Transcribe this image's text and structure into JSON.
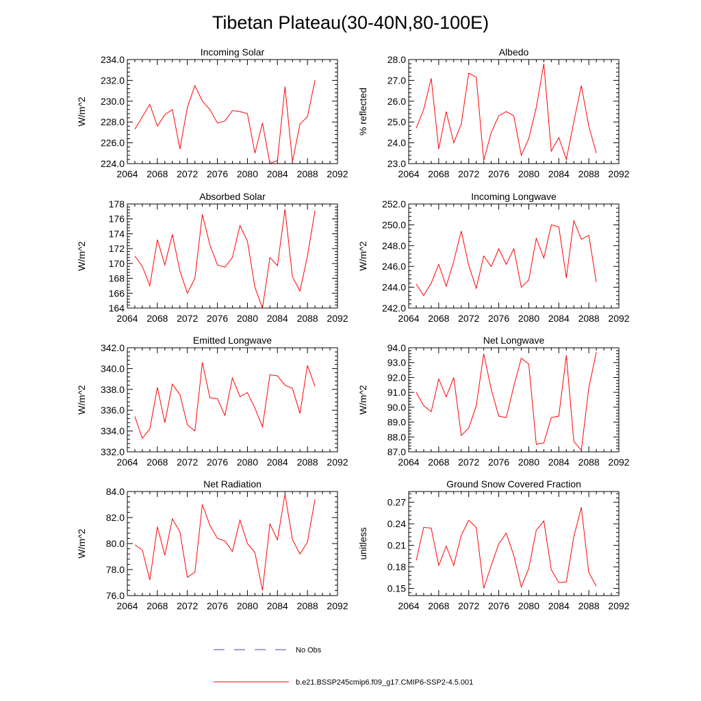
{
  "title": "Tibetan Plateau(30-40N,80-100E)",
  "colors": {
    "model": "#ff0000",
    "obs": "#4444bb",
    "axis": "#000000"
  },
  "legend": {
    "placement": "bottom-center",
    "obs_label": "No Obs",
    "model_label": "b.e21.BSSP245cmip6.f09_g17.CMIP6-SSP2-4.5.001"
  },
  "chart_data": [
    {
      "type": "line",
      "title": "Incoming Solar",
      "ylabel": "W/m^2",
      "xlim": [
        2064,
        2092
      ],
      "ylim": [
        224,
        234
      ],
      "xticks": [
        2064,
        2068,
        2072,
        2076,
        2080,
        2084,
        2088,
        2092
      ],
      "yticks": [
        224,
        226,
        228,
        230,
        232,
        234
      ],
      "ytick_labels": [
        "224.0",
        "226.0",
        "228.0",
        "230.0",
        "232.0",
        "234.0"
      ],
      "series": [
        {
          "name": "b.e21.BSSP245cmip6.f09_g17.CMIP6-SSP2-4.5.001",
          "x": [
            2065,
            2066,
            2067,
            2068,
            2069,
            2070,
            2071,
            2072,
            2073,
            2074,
            2075,
            2076,
            2077,
            2078,
            2079,
            2080,
            2081,
            2082,
            2083,
            2084,
            2085,
            2086,
            2087,
            2088,
            2089
          ],
          "values": [
            227.3,
            228.5,
            229.7,
            227.6,
            228.7,
            229.2,
            225.4,
            229.4,
            231.5,
            230.0,
            229.2,
            227.9,
            228.1,
            229.1,
            229.0,
            228.8,
            225.0,
            227.9,
            224.0,
            224.3,
            231.4,
            224.2,
            227.8,
            228.5,
            232.0
          ]
        }
      ]
    },
    {
      "type": "line",
      "title": "Albedo",
      "ylabel": "% reflected",
      "xlim": [
        2064,
        2092
      ],
      "ylim": [
        23,
        28
      ],
      "xticks": [
        2064,
        2068,
        2072,
        2076,
        2080,
        2084,
        2088,
        2092
      ],
      "yticks": [
        23,
        24,
        25,
        26,
        27,
        28
      ],
      "ytick_labels": [
        "23.0",
        "24.0",
        "25.0",
        "26.0",
        "27.0",
        "28.0"
      ],
      "series": [
        {
          "name": "b.e21.BSSP245cmip6.f09_g17.CMIP6-SSP2-4.5.001",
          "x": [
            2065,
            2066,
            2067,
            2068,
            2069,
            2070,
            2071,
            2072,
            2073,
            2074,
            2075,
            2076,
            2077,
            2078,
            2079,
            2080,
            2081,
            2082,
            2083,
            2084,
            2085,
            2086,
            2087,
            2088,
            2089
          ],
          "values": [
            24.7,
            25.6,
            27.1,
            23.7,
            25.5,
            24.0,
            24.9,
            27.35,
            27.15,
            23.15,
            24.5,
            25.3,
            25.5,
            25.3,
            23.4,
            24.2,
            25.7,
            27.8,
            23.6,
            24.25,
            23.2,
            25.0,
            26.75,
            24.8,
            23.5
          ]
        }
      ]
    },
    {
      "type": "line",
      "title": "Absorbed Solar",
      "ylabel": "W/m^2",
      "xlim": [
        2064,
        2092
      ],
      "ylim": [
        164,
        178
      ],
      "xticks": [
        2064,
        2068,
        2072,
        2076,
        2080,
        2084,
        2088,
        2092
      ],
      "yticks": [
        164,
        166,
        168,
        170,
        172,
        174,
        176,
        178
      ],
      "ytick_labels": [
        "164",
        "166",
        "168",
        "170",
        "172",
        "174",
        "176",
        "178"
      ],
      "series": [
        {
          "name": "b.e21.BSSP245cmip6.f09_g17.CMIP6-SSP2-4.5.001",
          "x": [
            2065,
            2066,
            2067,
            2068,
            2069,
            2070,
            2071,
            2072,
            2073,
            2074,
            2075,
            2076,
            2077,
            2078,
            2079,
            2080,
            2081,
            2082,
            2083,
            2084,
            2085,
            2086,
            2087,
            2088,
            2089
          ],
          "values": [
            171.0,
            169.6,
            167.0,
            173.2,
            169.8,
            173.9,
            169.0,
            166.0,
            168.0,
            176.6,
            172.5,
            169.8,
            169.5,
            170.8,
            175.1,
            173.0,
            166.8,
            164.0,
            170.8,
            169.7,
            177.3,
            168.2,
            166.3,
            171.0,
            177.1
          ]
        }
      ]
    },
    {
      "type": "line",
      "title": "Incoming Longwave",
      "ylabel": "W/m^2",
      "xlim": [
        2064,
        2092
      ],
      "ylim": [
        242,
        252
      ],
      "xticks": [
        2064,
        2068,
        2072,
        2076,
        2080,
        2084,
        2088,
        2092
      ],
      "yticks": [
        242,
        244,
        246,
        248,
        250,
        252
      ],
      "ytick_labels": [
        "242.0",
        "244.0",
        "246.0",
        "248.0",
        "250.0",
        "252.0"
      ],
      "series": [
        {
          "name": "b.e21.BSSP245cmip6.f09_g17.CMIP6-SSP2-4.5.001",
          "x": [
            2065,
            2066,
            2067,
            2068,
            2069,
            2070,
            2071,
            2072,
            2073,
            2074,
            2075,
            2076,
            2077,
            2078,
            2079,
            2080,
            2081,
            2082,
            2083,
            2084,
            2085,
            2086,
            2087,
            2088,
            2089
          ],
          "values": [
            244.3,
            243.2,
            244.4,
            246.2,
            244.1,
            246.5,
            249.4,
            246.1,
            243.9,
            247.0,
            246.0,
            247.7,
            246.2,
            247.7,
            244.0,
            244.7,
            248.7,
            246.8,
            250.0,
            249.8,
            244.9,
            250.4,
            248.6,
            249.0,
            244.5
          ]
        }
      ]
    },
    {
      "type": "line",
      "title": "Emitted Longwave",
      "ylabel": "W/m^2",
      "xlim": [
        2064,
        2092
      ],
      "ylim": [
        332,
        342
      ],
      "xticks": [
        2064,
        2068,
        2072,
        2076,
        2080,
        2084,
        2088,
        2092
      ],
      "yticks": [
        332,
        334,
        336,
        338,
        340,
        342
      ],
      "ytick_labels": [
        "332.0",
        "334.0",
        "336.0",
        "338.0",
        "340.0",
        "342.0"
      ],
      "series": [
        {
          "name": "b.e21.BSSP245cmip6.f09_g17.CMIP6-SSP2-4.5.001",
          "x": [
            2065,
            2066,
            2067,
            2068,
            2069,
            2070,
            2071,
            2072,
            2073,
            2074,
            2075,
            2076,
            2077,
            2078,
            2079,
            2080,
            2081,
            2082,
            2083,
            2084,
            2085,
            2086,
            2087,
            2088,
            2089
          ],
          "values": [
            335.4,
            333.3,
            334.2,
            338.2,
            334.8,
            338.5,
            337.5,
            334.6,
            334.0,
            340.6,
            337.2,
            337.1,
            335.5,
            339.1,
            337.3,
            337.7,
            336.2,
            334.4,
            339.4,
            339.3,
            338.4,
            338.1,
            335.7,
            340.3,
            338.3
          ]
        }
      ]
    },
    {
      "type": "line",
      "title": "Net Longwave",
      "ylabel": "W/m^2",
      "xlim": [
        2064,
        2092
      ],
      "ylim": [
        87,
        94
      ],
      "xticks": [
        2064,
        2068,
        2072,
        2076,
        2080,
        2084,
        2088,
        2092
      ],
      "yticks": [
        87,
        88,
        89,
        90,
        91,
        92,
        93,
        94
      ],
      "ytick_labels": [
        "87.0",
        "88.0",
        "89.0",
        "90.0",
        "91.0",
        "92.0",
        "93.0",
        "94.0"
      ],
      "series": [
        {
          "name": "b.e21.BSSP245cmip6.f09_g17.CMIP6-SSP2-4.5.001",
          "x": [
            2065,
            2066,
            2067,
            2068,
            2069,
            2070,
            2071,
            2072,
            2073,
            2074,
            2075,
            2076,
            2077,
            2078,
            2079,
            2080,
            2081,
            2082,
            2083,
            2084,
            2085,
            2086,
            2087,
            2088,
            2089
          ],
          "values": [
            91.0,
            90.1,
            89.7,
            91.9,
            90.7,
            92.0,
            88.1,
            88.6,
            90.1,
            93.6,
            91.2,
            89.4,
            89.3,
            91.4,
            93.3,
            92.9,
            87.5,
            87.6,
            89.3,
            89.4,
            93.5,
            87.7,
            87.1,
            91.3,
            93.7
          ]
        }
      ]
    },
    {
      "type": "line",
      "title": "Net Radiation",
      "ylabel": "W/m^2",
      "xlim": [
        2064,
        2092
      ],
      "ylim": [
        76,
        84
      ],
      "xticks": [
        2064,
        2068,
        2072,
        2076,
        2080,
        2084,
        2088,
        2092
      ],
      "yticks": [
        76,
        78,
        80,
        82,
        84
      ],
      "ytick_labels": [
        "76.0",
        "78.0",
        "80.0",
        "82.0",
        "84.0"
      ],
      "series": [
        {
          "name": "b.e21.BSSP245cmip6.f09_g17.CMIP6-SSP2-4.5.001",
          "x": [
            2065,
            2066,
            2067,
            2068,
            2069,
            2070,
            2071,
            2072,
            2073,
            2074,
            2075,
            2076,
            2077,
            2078,
            2079,
            2080,
            2081,
            2082,
            2083,
            2084,
            2085,
            2086,
            2087,
            2088,
            2089
          ],
          "values": [
            79.9,
            79.5,
            77.2,
            81.3,
            79.1,
            81.9,
            80.9,
            77.4,
            77.8,
            83.0,
            81.4,
            80.4,
            80.2,
            79.4,
            81.8,
            80.0,
            79.3,
            76.4,
            81.5,
            80.3,
            83.8,
            80.3,
            79.2,
            80.1,
            83.4
          ]
        }
      ]
    },
    {
      "type": "line",
      "title": "Ground Snow Covered Fraction",
      "ylabel": "unitless",
      "xlim": [
        2064,
        2092
      ],
      "ylim": [
        0.14,
        0.285
      ],
      "xticks": [
        2064,
        2068,
        2072,
        2076,
        2080,
        2084,
        2088,
        2092
      ],
      "yticks": [
        0.15,
        0.18,
        0.21,
        0.24,
        0.27
      ],
      "ytick_labels": [
        "0.15",
        "0.18",
        "0.21",
        "0.24",
        "0.27"
      ],
      "series": [
        {
          "name": "b.e21.BSSP245cmip6.f09_g17.CMIP6-SSP2-4.5.001",
          "x": [
            2065,
            2066,
            2067,
            2068,
            2069,
            2070,
            2071,
            2072,
            2073,
            2074,
            2075,
            2076,
            2077,
            2078,
            2079,
            2080,
            2081,
            2082,
            2083,
            2084,
            2085,
            2086,
            2087,
            2088,
            2089
          ],
          "values": [
            0.189,
            0.235,
            0.234,
            0.182,
            0.209,
            0.182,
            0.224,
            0.245,
            0.235,
            0.15,
            0.182,
            0.212,
            0.227,
            0.196,
            0.152,
            0.178,
            0.231,
            0.244,
            0.176,
            0.158,
            0.159,
            0.222,
            0.263,
            0.172,
            0.153
          ]
        }
      ]
    }
  ]
}
